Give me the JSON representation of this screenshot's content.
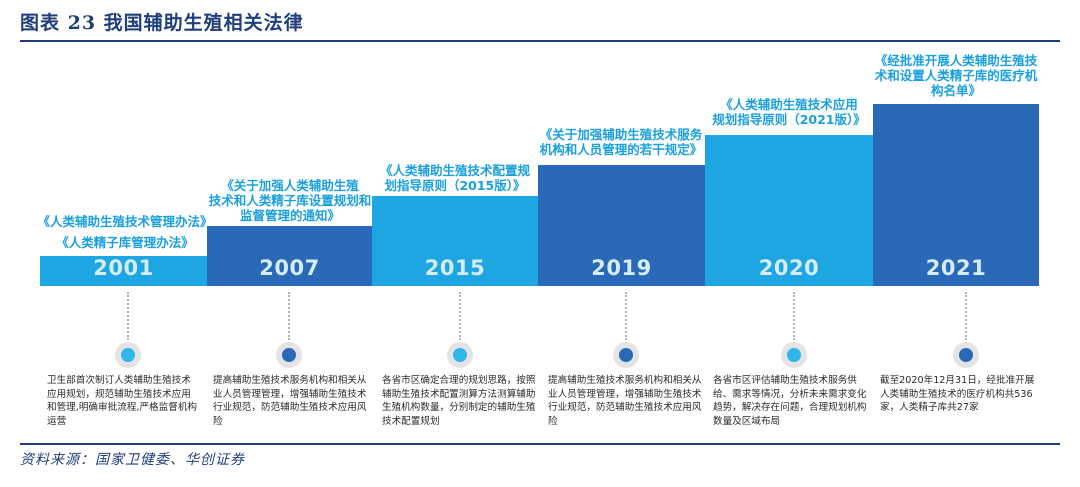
{
  "header": {
    "title": "图表 23    我国辅助生殖相关法律"
  },
  "source": "资料来源：国家卫健委、华创证券",
  "colors": {
    "light": "#1ea6e2",
    "dark": "#2a68b8",
    "title": "#1aa0de",
    "navy": "#1f3f7a"
  },
  "timeline": [
    {
      "year": "2001",
      "laws": [
        "《人类辅助生殖技术管理办法》",
        "《人类精子库管理办法》"
      ],
      "description": "卫生部首次制订人类辅助生殖技术应用规划，规范辅助生殖技术应用和管理,明确审批流程,严格监督机构运营"
    },
    {
      "year": "2007",
      "laws": [
        "《关于加强人类辅助生殖",
        "技术和人类精子库设置规划和",
        "监督管理的通知》"
      ],
      "description": "提高辅助生殖技术服务机构和相关从业人员管理管理，增强辅助生殖技术行业规范，防范辅助生殖技术应用风险"
    },
    {
      "year": "2015",
      "laws": [
        "《人类辅助生殖技术配置规",
        "划指导原则（2015版）》"
      ],
      "description": "各省市区确定合理的规划思路，按照辅助生殖技术配置测算方法测算辅助生殖机构数量，分别制定的辅助生殖技术配置规划"
    },
    {
      "year": "2019",
      "laws": [
        "《关于加强辅助生殖技术服务",
        "机构和人员管理的若干规定》"
      ],
      "description": "提高辅助生殖技术服务机构和相关从业人员管理管理，增强辅助生殖技术行业规范，防范辅助生殖技术应用风险"
    },
    {
      "year": "2020",
      "laws": [
        "《人类辅助生殖技术应用",
        "规划指导原则（2021版）》"
      ],
      "description": "各省市区评估辅助生殖技术服务供给、需求等情况，分析未来需求变化趋势，解决存在问题，合理规划机构数量及区域布局"
    },
    {
      "year": "2021",
      "laws": [
        "《经批准开展人类辅助生殖技",
        "术和设置人类精子库的医疗机",
        "构名单》"
      ],
      "description": "截至2020年12月31日，经批准开展人类辅助生殖技术的医疗机构共536家，人类精子库共27家"
    }
  ]
}
